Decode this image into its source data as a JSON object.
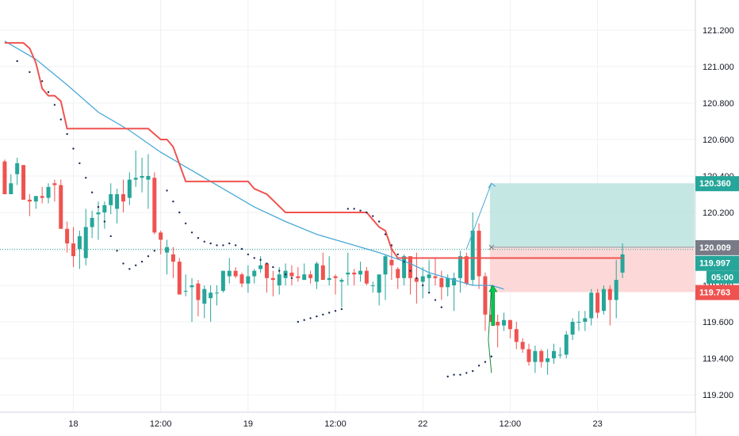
{
  "chart_data": {
    "type": "candlestick",
    "instrument_price_axis": {
      "ticks": [
        "121.200",
        "121.000",
        "120.800",
        "120.600",
        "120.400",
        "120.200",
        "120.000",
        "119.800",
        "119.600",
        "119.400",
        "119.200"
      ],
      "tick_values": [
        121.2,
        121.0,
        120.8,
        120.6,
        120.4,
        120.2,
        120.0,
        119.8,
        119.6,
        119.4,
        119.2
      ],
      "ylim": [
        119.14,
        121.36
      ]
    },
    "time_axis": {
      "labels": [
        "18",
        "12:00",
        "19",
        "12:00",
        "22",
        "12:00",
        "23"
      ],
      "label_bar_index": [
        11,
        25,
        39,
        53,
        67,
        81,
        95
      ],
      "bars_visible": 110
    },
    "colors": {
      "up": "#26a69a",
      "down": "#ef5350",
      "trailing_stop": "#f05350",
      "moving_average": "#4aa8d8",
      "sar_dots": "#1e2a5a",
      "target_zone": "#b2dfdb",
      "stop_zone": "#fcd5d4",
      "signal_arrow": "#00c853",
      "current_price_line": "#26a69a",
      "axis_text": "#131722",
      "tag_gray": "#787b86"
    },
    "candles": [
      [
        120.48,
        120.49,
        120.3,
        120.3
      ],
      [
        120.3,
        120.41,
        120.3,
        120.36
      ],
      [
        120.41,
        120.5,
        120.35,
        120.47
      ],
      [
        120.46,
        120.46,
        120.27,
        120.27
      ],
      [
        120.27,
        120.3,
        120.18,
        120.26
      ],
      [
        120.26,
        120.29,
        120.22,
        120.29
      ],
      [
        120.29,
        120.34,
        120.25,
        120.28
      ],
      [
        120.28,
        120.36,
        120.25,
        120.34
      ],
      [
        120.36,
        120.38,
        120.26,
        120.35
      ],
      [
        120.35,
        120.38,
        120.12,
        120.11
      ],
      [
        120.11,
        120.15,
        119.98,
        120.03
      ],
      [
        120.03,
        120.12,
        119.9,
        119.96
      ],
      [
        120.0,
        120.1,
        119.89,
        120.07
      ],
      [
        119.95,
        120.22,
        119.91,
        120.12
      ],
      [
        120.12,
        120.21,
        120.06,
        120.17
      ],
      [
        120.19,
        120.26,
        120.05,
        120.2
      ],
      [
        120.2,
        120.26,
        120.11,
        120.24
      ],
      [
        120.24,
        120.36,
        120.19,
        120.3
      ],
      [
        120.22,
        120.33,
        120.14,
        120.3
      ],
      [
        120.3,
        120.38,
        120.2,
        120.26
      ],
      [
        120.28,
        120.42,
        120.24,
        120.38
      ],
      [
        120.38,
        120.54,
        120.34,
        120.39
      ],
      [
        120.39,
        120.5,
        120.31,
        120.4
      ],
      [
        120.38,
        120.52,
        120.22,
        120.4
      ],
      [
        120.39,
        120.42,
        120.08,
        120.09
      ],
      [
        120.09,
        120.1,
        119.97,
        120.05
      ],
      [
        119.98,
        120.05,
        119.86,
        120.01
      ],
      [
        119.97,
        120.01,
        119.84,
        119.93
      ],
      [
        119.93,
        119.95,
        119.75,
        119.75
      ],
      [
        119.77,
        119.86,
        119.74,
        119.77
      ],
      [
        119.79,
        119.84,
        119.6,
        119.8
      ],
      [
        119.81,
        119.83,
        119.63,
        119.72
      ],
      [
        119.7,
        119.8,
        119.62,
        119.78
      ],
      [
        119.73,
        119.8,
        119.6,
        119.76
      ],
      [
        119.76,
        119.8,
        119.69,
        119.76
      ],
      [
        119.77,
        119.88,
        119.76,
        119.88
      ],
      [
        119.85,
        119.95,
        119.81,
        119.88
      ],
      [
        119.88,
        119.9,
        119.84,
        119.85
      ],
      [
        119.86,
        119.87,
        119.79,
        119.81
      ],
      [
        119.81,
        119.91,
        119.76,
        119.85
      ],
      [
        119.85,
        119.89,
        119.81,
        119.88
      ],
      [
        119.89,
        119.96,
        119.87,
        119.91
      ],
      [
        119.92,
        119.92,
        119.76,
        119.84
      ],
      [
        119.84,
        119.88,
        119.74,
        119.83
      ],
      [
        119.8,
        119.9,
        119.75,
        119.86
      ],
      [
        119.84,
        119.92,
        119.8,
        119.88
      ],
      [
        119.87,
        119.91,
        119.8,
        119.85
      ],
      [
        119.85,
        119.9,
        119.82,
        119.84
      ],
      [
        119.83,
        119.92,
        119.83,
        119.86
      ],
      [
        119.86,
        119.88,
        119.81,
        119.84
      ],
      [
        119.82,
        119.93,
        119.78,
        119.92
      ],
      [
        119.91,
        119.98,
        119.84,
        119.83
      ],
      [
        119.83,
        119.96,
        119.8,
        119.84
      ],
      [
        119.85,
        119.86,
        119.75,
        119.84
      ],
      [
        119.82,
        119.84,
        119.68,
        119.83
      ],
      [
        119.86,
        119.98,
        119.8,
        119.87
      ],
      [
        119.87,
        119.89,
        119.8,
        119.86
      ],
      [
        119.86,
        119.93,
        119.82,
        119.88
      ],
      [
        119.88,
        119.9,
        119.8,
        119.81
      ],
      [
        119.8,
        119.82,
        119.76,
        119.8
      ],
      [
        119.76,
        119.86,
        119.69,
        119.86
      ],
      [
        119.86,
        119.97,
        119.72,
        119.96
      ],
      [
        119.94,
        120.02,
        119.83,
        119.91
      ],
      [
        119.89,
        119.9,
        119.78,
        119.84
      ],
      [
        119.84,
        119.97,
        119.8,
        119.96
      ],
      [
        119.96,
        119.96,
        119.75,
        119.84
      ],
      [
        119.84,
        119.98,
        119.7,
        119.82
      ],
      [
        119.82,
        119.9,
        119.73,
        119.85
      ],
      [
        119.84,
        119.94,
        119.76,
        119.86
      ],
      [
        119.85,
        119.95,
        119.8,
        119.84
      ],
      [
        119.84,
        119.88,
        119.72,
        119.79
      ],
      [
        119.79,
        119.86,
        119.74,
        119.84
      ],
      [
        119.8,
        119.87,
        119.66,
        119.84
      ],
      [
        119.84,
        119.99,
        119.76,
        119.96
      ],
      [
        119.96,
        119.98,
        119.8,
        119.81
      ],
      [
        119.83,
        120.2,
        119.8,
        120.1
      ],
      [
        120.1,
        120.14,
        119.78,
        119.85
      ],
      [
        119.85,
        119.87,
        119.55,
        119.64
      ],
      [
        119.64,
        119.7,
        119.6,
        119.6
      ],
      [
        119.6,
        119.64,
        119.46,
        119.58
      ],
      [
        119.58,
        119.65,
        119.55,
        119.61
      ],
      [
        119.61,
        119.61,
        119.51,
        119.56
      ],
      [
        119.56,
        119.6,
        119.45,
        119.49
      ],
      [
        119.49,
        119.51,
        119.43,
        119.45
      ],
      [
        119.45,
        119.48,
        119.36,
        119.38
      ],
      [
        119.38,
        119.47,
        119.32,
        119.44
      ],
      [
        119.44,
        119.45,
        119.35,
        119.38
      ],
      [
        119.38,
        119.45,
        119.31,
        119.4
      ],
      [
        119.4,
        119.48,
        119.37,
        119.44
      ],
      [
        119.42,
        119.46,
        119.4,
        119.42
      ],
      [
        119.42,
        119.55,
        119.4,
        119.53
      ],
      [
        119.53,
        119.62,
        119.5,
        119.6
      ],
      [
        119.6,
        119.66,
        119.55,
        119.6
      ],
      [
        119.6,
        119.66,
        119.55,
        119.62
      ],
      [
        119.62,
        119.78,
        119.58,
        119.76
      ],
      [
        119.76,
        119.78,
        119.62,
        119.65
      ],
      [
        119.66,
        119.8,
        119.64,
        119.78
      ],
      [
        119.78,
        119.8,
        119.58,
        119.72
      ],
      [
        119.72,
        119.94,
        119.62,
        119.83
      ],
      [
        119.87,
        120.03,
        119.84,
        119.97
      ]
    ],
    "trailing_stop_line": [
      [
        0,
        121.13
      ],
      [
        3,
        121.13
      ],
      [
        4,
        121.1
      ],
      [
        5,
        121.02
      ],
      [
        6,
        120.88
      ],
      [
        7,
        120.84
      ],
      [
        8,
        120.84
      ],
      [
        9,
        120.81
      ],
      [
        10,
        120.66
      ],
      [
        23,
        120.66
      ],
      [
        25,
        120.6
      ],
      [
        26,
        120.6
      ],
      [
        27,
        120.56
      ],
      [
        29,
        120.37
      ],
      [
        39,
        120.37
      ],
      [
        40,
        120.33
      ],
      [
        42,
        120.3
      ],
      [
        45,
        120.2
      ],
      [
        58,
        120.2
      ],
      [
        59,
        120.16
      ],
      [
        60,
        120.12
      ],
      [
        61,
        120.1
      ],
      [
        62,
        120.0
      ],
      [
        63,
        119.95
      ],
      [
        67,
        119.95
      ],
      [
        99,
        119.95
      ]
    ],
    "moving_average_line": [
      [
        0,
        121.14
      ],
      [
        5,
        121.04
      ],
      [
        10,
        120.9
      ],
      [
        15,
        120.75
      ],
      [
        20,
        120.65
      ],
      [
        25,
        120.53
      ],
      [
        30,
        120.43
      ],
      [
        35,
        120.33
      ],
      [
        40,
        120.23
      ],
      [
        45,
        120.15
      ],
      [
        50,
        120.08
      ],
      [
        55,
        120.03
      ],
      [
        60,
        119.98
      ],
      [
        65,
        119.92
      ],
      [
        68,
        119.87
      ],
      [
        72,
        119.83
      ],
      [
        75,
        119.8
      ],
      [
        78,
        119.8
      ],
      [
        80,
        119.78
      ]
    ],
    "sar_dots": [
      [
        2,
        121.03
      ],
      [
        4,
        120.97
      ],
      [
        6,
        120.92
      ],
      [
        7,
        120.86
      ],
      [
        8,
        120.79
      ],
      [
        9,
        120.71
      ],
      [
        10,
        120.63
      ],
      [
        11,
        120.55
      ],
      [
        12,
        120.47
      ],
      [
        13,
        120.39
      ],
      [
        14,
        120.31
      ],
      [
        15,
        120.23
      ],
      [
        16,
        120.15
      ],
      [
        17,
        120.07
      ],
      [
        18,
        119.99
      ],
      [
        19,
        119.92
      ],
      [
        20,
        119.89
      ],
      [
        21,
        119.91
      ],
      [
        22,
        119.93
      ],
      [
        23,
        119.96
      ],
      [
        24,
        119.99
      ],
      [
        26,
        120.32
      ],
      [
        27,
        120.26
      ],
      [
        28,
        120.2
      ],
      [
        29,
        120.14
      ],
      [
        30,
        120.09
      ],
      [
        31,
        120.06
      ],
      [
        32,
        120.04
      ],
      [
        33,
        120.03
      ],
      [
        34,
        120.02
      ],
      [
        35,
        120.02
      ],
      [
        36,
        120.03
      ],
      [
        37,
        120.02
      ],
      [
        38,
        120.0
      ],
      [
        39,
        119.97
      ],
      [
        40,
        119.95
      ],
      [
        41,
        119.94
      ],
      [
        42,
        119.92
      ],
      [
        43,
        119.9
      ],
      [
        44,
        119.88
      ],
      [
        45,
        119.86
      ],
      [
        46,
        119.84
      ],
      [
        47,
        119.6
      ],
      [
        48,
        119.61
      ],
      [
        49,
        119.62
      ],
      [
        50,
        119.63
      ],
      [
        51,
        119.64
      ],
      [
        52,
        119.65
      ],
      [
        53,
        119.66
      ],
      [
        54,
        119.67
      ],
      [
        55,
        120.22
      ],
      [
        56,
        120.22
      ],
      [
        57,
        120.21
      ],
      [
        58,
        120.2
      ],
      [
        59,
        120.18
      ],
      [
        60,
        120.15
      ],
      [
        61,
        120.08
      ],
      [
        62,
        120.02
      ],
      [
        63,
        119.97
      ],
      [
        64,
        119.93
      ],
      [
        65,
        119.88
      ],
      [
        66,
        119.84
      ],
      [
        67,
        119.8
      ],
      [
        68,
        119.76
      ],
      [
        69,
        119.72
      ],
      [
        70,
        119.68
      ],
      [
        71,
        119.3
      ],
      [
        72,
        119.31
      ],
      [
        73,
        119.31
      ],
      [
        74,
        119.32
      ],
      [
        75,
        119.33
      ],
      [
        76,
        119.36
      ],
      [
        77,
        119.38
      ],
      [
        78,
        119.41
      ]
    ],
    "position_tool": {
      "entry": 120.009,
      "target": 120.36,
      "stop": 119.763,
      "start_bar": 78,
      "end_bar": 110,
      "projection_path": [
        [
          74,
          120.0
        ],
        [
          78,
          120.36
        ]
      ],
      "projection_tick_bar": 78
    },
    "signal_arrow": {
      "bar": 78,
      "tip": 119.8,
      "tail": 119.58
    },
    "signal_line": [
      [
        78,
        119.8
      ],
      [
        77.5,
        119.5
      ],
      [
        78,
        119.32
      ]
    ],
    "current_price": {
      "value": 119.997,
      "label": "119.997",
      "countdown": "05:00"
    },
    "price_tags": [
      {
        "label": "120.360",
        "value": 120.36,
        "color": "#26a69a"
      },
      {
        "label": "120.009",
        "value": 120.009,
        "color": "#787b86"
      },
      {
        "label": "119.763",
        "value": 119.763,
        "color": "#ef5350"
      }
    ]
  }
}
